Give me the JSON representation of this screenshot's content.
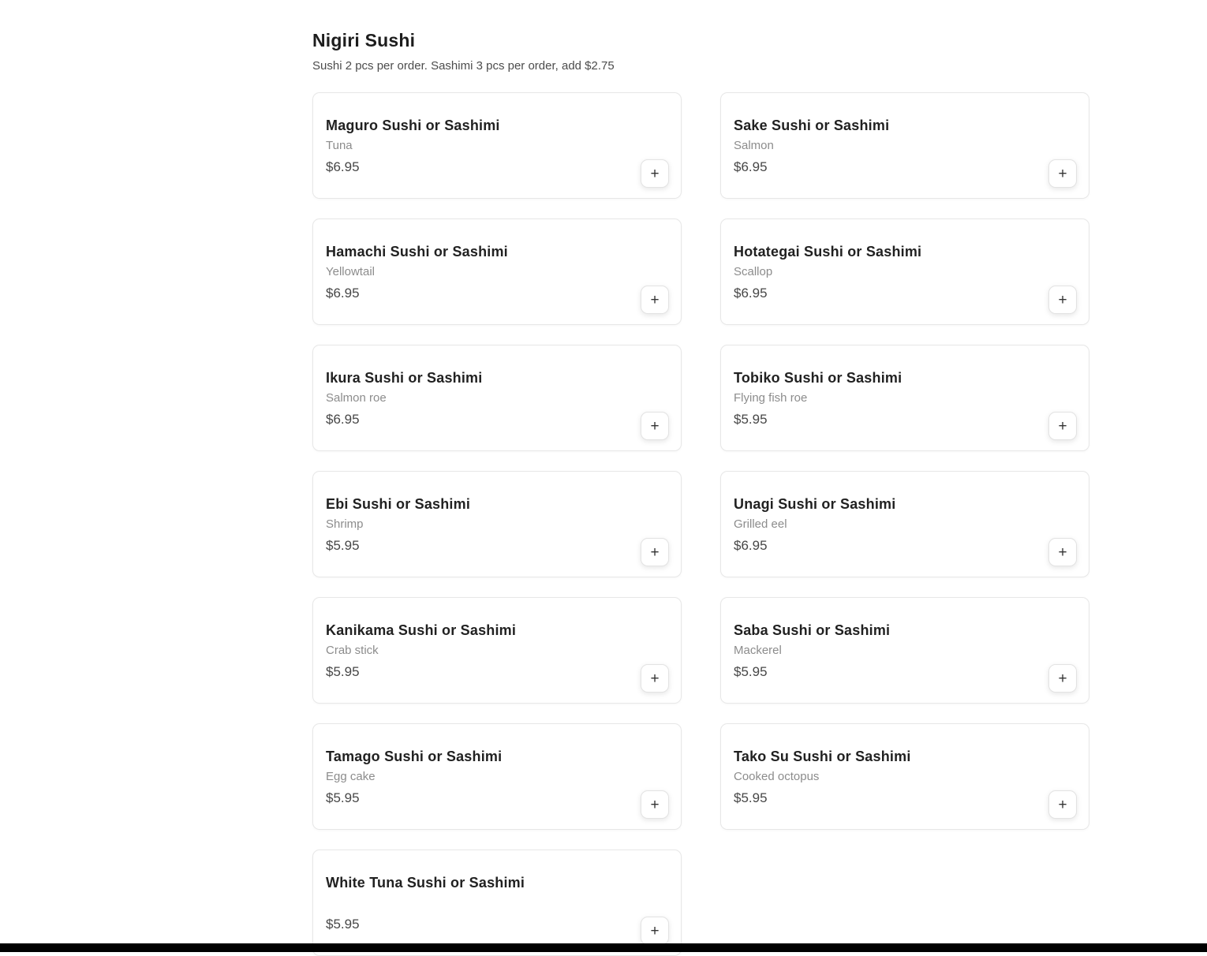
{
  "colors": {
    "page_background": "#ffffff",
    "card_border": "#e7e7e7",
    "title_text": "#212121",
    "description_text": "#8c8c8c",
    "price_text": "#474747",
    "bottom_bar": "#000000"
  },
  "section": {
    "title": "Nigiri Sushi",
    "subtitle": "Sushi 2 pcs per order. Sashimi 3 pcs per order, add $2.75",
    "add_button_label": "+",
    "items": [
      {
        "name": "Maguro Sushi or Sashimi",
        "description": "Tuna",
        "price": "$6.95"
      },
      {
        "name": "Sake Sushi or Sashimi",
        "description": "Salmon",
        "price": "$6.95"
      },
      {
        "name": "Hamachi Sushi or Sashimi",
        "description": "Yellowtail",
        "price": "$6.95"
      },
      {
        "name": "Hotategai Sushi or Sashimi",
        "description": "Scallop",
        "price": "$6.95"
      },
      {
        "name": "Ikura Sushi or Sashimi",
        "description": "Salmon roe",
        "price": "$6.95"
      },
      {
        "name": "Tobiko Sushi or Sashimi",
        "description": "Flying fish roe",
        "price": "$5.95"
      },
      {
        "name": "Ebi Sushi or Sashimi",
        "description": "Shrimp",
        "price": "$5.95"
      },
      {
        "name": "Unagi Sushi or Sashimi",
        "description": "Grilled eel",
        "price": "$6.95"
      },
      {
        "name": "Kanikama Sushi or Sashimi",
        "description": "Crab stick",
        "price": "$5.95"
      },
      {
        "name": "Saba Sushi or Sashimi",
        "description": "Mackerel",
        "price": "$5.95"
      },
      {
        "name": "Tamago Sushi or Sashimi",
        "description": "Egg cake",
        "price": "$5.95"
      },
      {
        "name": "Tako Su Sushi or Sashimi",
        "description": "Cooked octopus",
        "price": "$5.95"
      },
      {
        "name": "White Tuna Sushi or Sashimi",
        "description": "",
        "price": "$5.95"
      }
    ]
  }
}
